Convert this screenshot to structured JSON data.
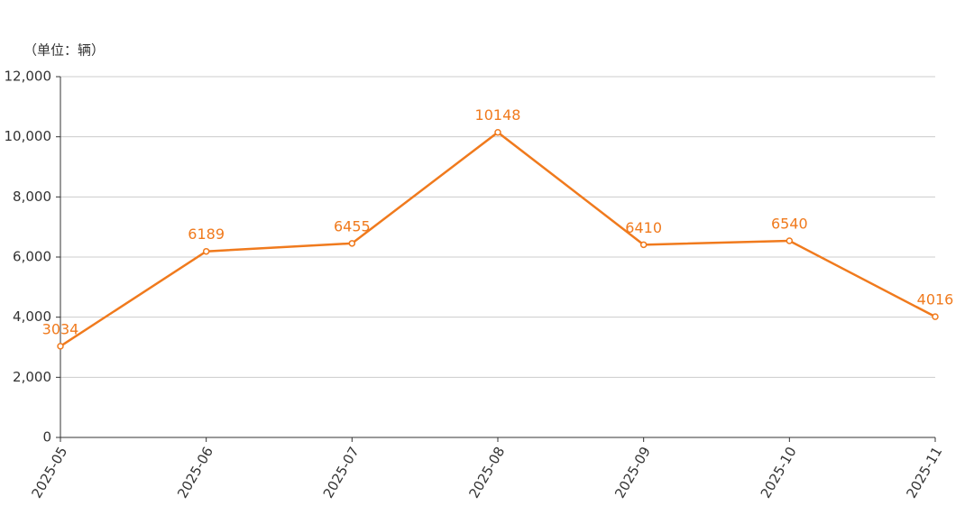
{
  "chart_data": {
    "type": "line",
    "y_axis_label": "（单位：辆）",
    "categories": [
      "2025-05",
      "2025-06",
      "2025-07",
      "2025-08",
      "2025-09",
      "2025-10",
      "2025-11"
    ],
    "series": [
      {
        "color": "#f07a1d",
        "values": [
          3034,
          6189,
          6455,
          10148,
          6410,
          6540,
          4016
        ]
      }
    ],
    "ylim": [
      0,
      12000
    ],
    "yticks": [
      0,
      {
        "value": 2000,
        "label": "2,000"
      },
      {
        "value": 4000,
        "label": "4,000"
      },
      {
        "value": 6000,
        "label": "6,000"
      },
      {
        "value": 8000,
        "label": "8,000"
      },
      {
        "value": 10000,
        "label": "10,000"
      },
      {
        "value": 12000,
        "label": "12,000"
      }
    ],
    "grid": true
  }
}
